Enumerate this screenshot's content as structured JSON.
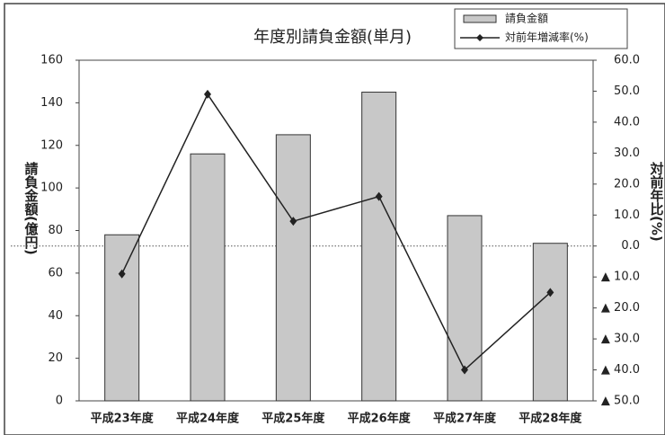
{
  "chart_data": {
    "type": "bar",
    "title": "年度別請負金額(単月)",
    "y_label": "請負金額(億円)",
    "y2_label": "対前年比(%)",
    "categories": [
      "平成23年度",
      "平成24年度",
      "平成25年度",
      "平成26年度",
      "平成27年度",
      "平成28年度"
    ],
    "series": [
      {
        "name": "請負金額",
        "type": "bar",
        "color": "#c8c8c8",
        "values": [
          78,
          116,
          125,
          145,
          87,
          74
        ]
      },
      {
        "name": "対前年増減率(%)",
        "type": "line",
        "axis": "y2",
        "color": "#222222",
        "values": [
          -9,
          49,
          8,
          16,
          -40,
          -15
        ]
      }
    ],
    "ylim": [
      0,
      160
    ],
    "yticks": [
      0,
      20,
      40,
      60,
      80,
      100,
      120,
      140,
      160
    ],
    "y2lim": [
      -50,
      60
    ],
    "y2ticks": [
      {
        "value": -50,
        "label": "▲ 50.0"
      },
      {
        "value": -40,
        "label": "▲ 40.0"
      },
      {
        "value": -30,
        "label": "▲ 30.0"
      },
      {
        "value": -20,
        "label": "▲ 20.0"
      },
      {
        "value": -10,
        "label": "▲ 10.0"
      },
      {
        "value": 0,
        "label": "0.0"
      },
      {
        "value": 10,
        "label": "10.0"
      },
      {
        "value": 20,
        "label": "20.0"
      },
      {
        "value": 30,
        "label": "30.0"
      },
      {
        "value": 40,
        "label": "40.0"
      },
      {
        "value": 50,
        "label": "50.0"
      },
      {
        "value": 60,
        "label": "60.0"
      }
    ],
    "zero_line": true,
    "legend": "top-right"
  }
}
